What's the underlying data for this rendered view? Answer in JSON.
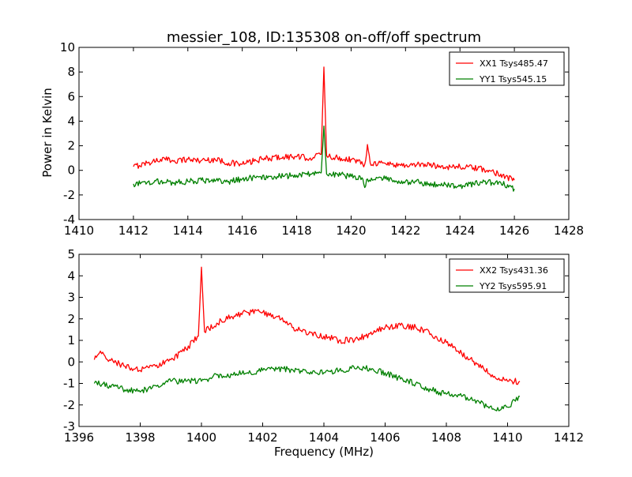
{
  "figure": {
    "title": "messier_108, ID:135308 on-off/off spectrum",
    "ylabel": "Power in Kelvin",
    "xlabel": "Frequency (MHz)"
  },
  "chart_data": [
    {
      "type": "line",
      "title": "messier_108, ID:135308 on-off/off spectrum",
      "xlabel": "",
      "ylabel": "Power in Kelvin",
      "xlim": [
        1410,
        1428
      ],
      "ylim": [
        -4,
        10
      ],
      "xticks": [
        1410,
        1412,
        1414,
        1416,
        1418,
        1420,
        1422,
        1424,
        1426,
        1428
      ],
      "yticks": [
        -4,
        -2,
        0,
        2,
        4,
        6,
        8,
        10
      ],
      "grid": false,
      "legend_position": "top-right",
      "series": [
        {
          "name": "XX1 Tsys485.47",
          "color": "#ff0000",
          "x": [
            1412.0,
            1412.5,
            1413.0,
            1413.5,
            1414.0,
            1414.5,
            1415.0,
            1415.5,
            1416.0,
            1416.5,
            1417.0,
            1417.5,
            1418.0,
            1418.5,
            1418.9,
            1419.0,
            1419.1,
            1419.5,
            1420.0,
            1420.5,
            1420.6,
            1420.7,
            1421.0,
            1421.5,
            1422.0,
            1422.5,
            1423.0,
            1423.5,
            1424.0,
            1424.5,
            1425.0,
            1425.5,
            1426.0
          ],
          "y": [
            0.3,
            0.6,
            0.9,
            0.8,
            0.9,
            0.8,
            0.9,
            0.6,
            0.5,
            0.8,
            1.0,
            1.1,
            1.1,
            1.0,
            1.3,
            8.4,
            1.2,
            1.0,
            0.9,
            0.5,
            2.1,
            0.6,
            0.6,
            0.5,
            0.4,
            0.5,
            0.4,
            0.3,
            0.3,
            0.2,
            0.0,
            -0.3,
            -0.8
          ]
        },
        {
          "name": "YY1 Tsys545.15",
          "color": "#008000",
          "x": [
            1412.0,
            1412.5,
            1413.0,
            1413.5,
            1414.0,
            1414.5,
            1415.0,
            1415.5,
            1416.0,
            1416.5,
            1417.0,
            1417.5,
            1418.0,
            1418.5,
            1418.9,
            1419.0,
            1419.1,
            1419.5,
            1420.0,
            1420.4,
            1420.5,
            1420.6,
            1421.0,
            1421.5,
            1422.0,
            1422.5,
            1423.0,
            1423.5,
            1424.0,
            1424.5,
            1425.0,
            1425.5,
            1426.0
          ],
          "y": [
            -1.1,
            -1.0,
            -0.9,
            -1.0,
            -0.9,
            -0.8,
            -0.9,
            -0.9,
            -0.7,
            -0.6,
            -0.5,
            -0.5,
            -0.4,
            -0.3,
            -0.2,
            3.6,
            -0.3,
            -0.3,
            -0.5,
            -0.6,
            -1.4,
            -0.7,
            -0.6,
            -0.8,
            -0.9,
            -1.0,
            -1.1,
            -1.2,
            -1.3,
            -1.1,
            -1.0,
            -1.0,
            -1.5
          ]
        }
      ]
    },
    {
      "type": "line",
      "title": "",
      "xlabel": "Frequency (MHz)",
      "ylabel": "",
      "xlim": [
        1396,
        1412
      ],
      "ylim": [
        -3,
        5
      ],
      "xticks": [
        1396,
        1398,
        1400,
        1402,
        1404,
        1406,
        1408,
        1410,
        1412
      ],
      "yticks": [
        -3,
        -2,
        -1,
        0,
        1,
        2,
        3,
        4,
        5
      ],
      "grid": false,
      "legend_position": "top-right",
      "series": [
        {
          "name": "XX2 Tsys431.36",
          "color": "#ff0000",
          "x": [
            1396.5,
            1396.7,
            1397.0,
            1397.5,
            1398.0,
            1398.5,
            1399.0,
            1399.5,
            1399.9,
            1400.0,
            1400.1,
            1400.5,
            1401.0,
            1401.5,
            1402.0,
            1402.5,
            1403.0,
            1403.5,
            1404.0,
            1404.5,
            1405.0,
            1405.5,
            1406.0,
            1406.5,
            1407.0,
            1407.5,
            1408.0,
            1408.5,
            1409.0,
            1409.5,
            1410.0,
            1410.4
          ],
          "y": [
            0.1,
            0.5,
            0.1,
            -0.2,
            -0.4,
            -0.2,
            0.1,
            0.6,
            1.2,
            4.4,
            1.4,
            1.8,
            2.1,
            2.3,
            2.3,
            2.1,
            1.6,
            1.3,
            1.2,
            1.0,
            1.0,
            1.3,
            1.6,
            1.7,
            1.6,
            1.3,
            0.9,
            0.4,
            -0.1,
            -0.6,
            -0.9,
            -0.9
          ]
        },
        {
          "name": "YY2 Tsys595.91",
          "color": "#008000",
          "x": [
            1396.5,
            1397.0,
            1397.5,
            1398.0,
            1398.5,
            1399.0,
            1399.5,
            1400.0,
            1400.5,
            1401.0,
            1401.5,
            1402.0,
            1402.5,
            1403.0,
            1403.5,
            1404.0,
            1404.5,
            1405.0,
            1405.5,
            1406.0,
            1406.5,
            1407.0,
            1407.5,
            1408.0,
            1408.5,
            1409.0,
            1409.5,
            1410.0,
            1410.4
          ],
          "y": [
            -1.0,
            -1.1,
            -1.3,
            -1.4,
            -1.1,
            -0.9,
            -0.9,
            -0.9,
            -0.6,
            -0.6,
            -0.5,
            -0.4,
            -0.3,
            -0.4,
            -0.5,
            -0.5,
            -0.4,
            -0.3,
            -0.3,
            -0.5,
            -0.8,
            -1.0,
            -1.3,
            -1.5,
            -1.6,
            -1.8,
            -2.2,
            -2.1,
            -1.6
          ]
        }
      ]
    }
  ]
}
